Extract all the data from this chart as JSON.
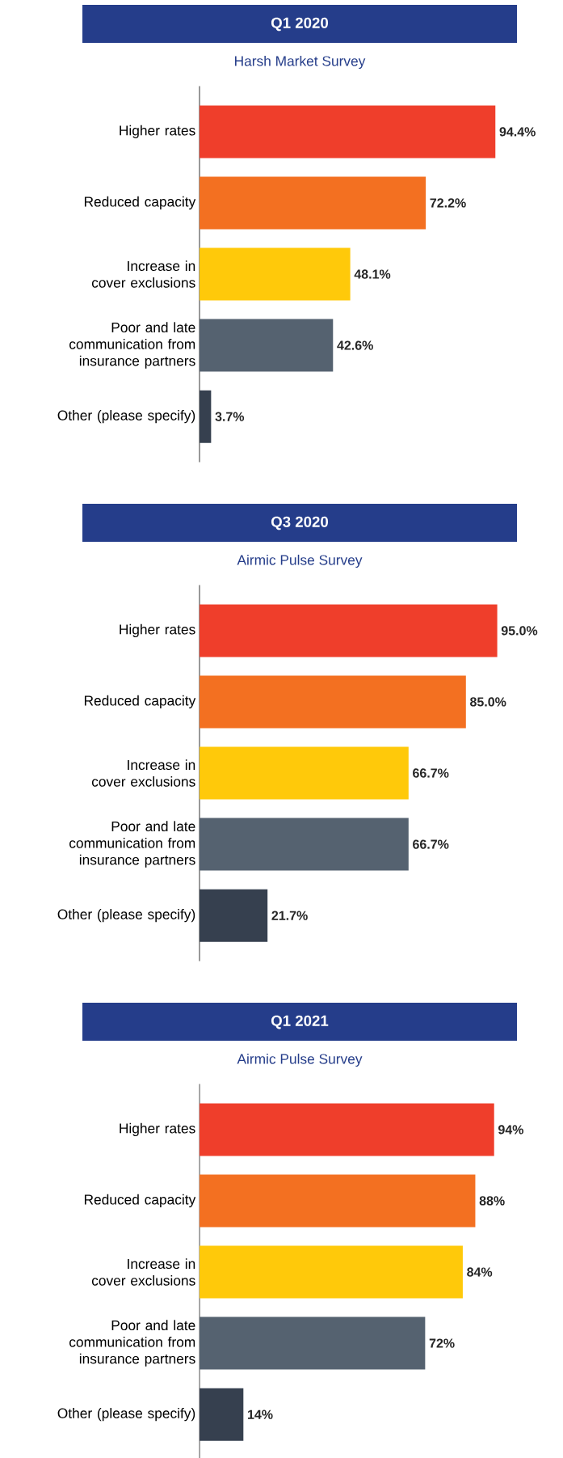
{
  "chart_data": [
    {
      "type": "bar",
      "orientation": "horizontal",
      "title": "Q1 2020",
      "subtitle": "Harsh Market Survey",
      "categories": [
        "Higher rates",
        "Reduced capacity",
        "Increase in cover exclusions",
        "Poor and late communication from insurance partners",
        "Other (please specify)"
      ],
      "values": [
        94.4,
        72.2,
        48.1,
        42.6,
        3.7
      ],
      "value_labels": [
        "94.4%",
        "72.2%",
        "48.1%",
        "42.6%",
        "3.7%"
      ],
      "colors": [
        "#ef3e2b",
        "#f37021",
        "#ffc90a",
        "#556270",
        "#36404f"
      ]
    },
    {
      "type": "bar",
      "orientation": "horizontal",
      "title": "Q3 2020",
      "subtitle": "Airmic Pulse Survey",
      "categories": [
        "Higher rates",
        "Reduced capacity",
        "Increase in cover exclusions",
        "Poor and late communication from insurance partners",
        "Other (please specify)"
      ],
      "values": [
        95.0,
        85.0,
        66.7,
        66.7,
        21.7
      ],
      "value_labels": [
        "95.0%",
        "85.0%",
        "66.7%",
        "66.7%",
        "21.7%"
      ],
      "colors": [
        "#ef3e2b",
        "#f37021",
        "#ffc90a",
        "#556270",
        "#36404f"
      ]
    },
    {
      "type": "bar",
      "orientation": "horizontal",
      "title": "Q1 2021",
      "subtitle": "Airmic Pulse Survey",
      "categories": [
        "Higher rates",
        "Reduced capacity",
        "Increase in cover exclusions",
        "Poor and late communication from insurance partners",
        "Other (please specify)"
      ],
      "values": [
        94,
        88,
        84,
        72,
        14
      ],
      "value_labels": [
        "94%",
        "88%",
        "84%",
        "72%",
        "14%"
      ],
      "colors": [
        "#ef3e2b",
        "#f37021",
        "#ffc90a",
        "#556270",
        "#36404f"
      ]
    }
  ]
}
